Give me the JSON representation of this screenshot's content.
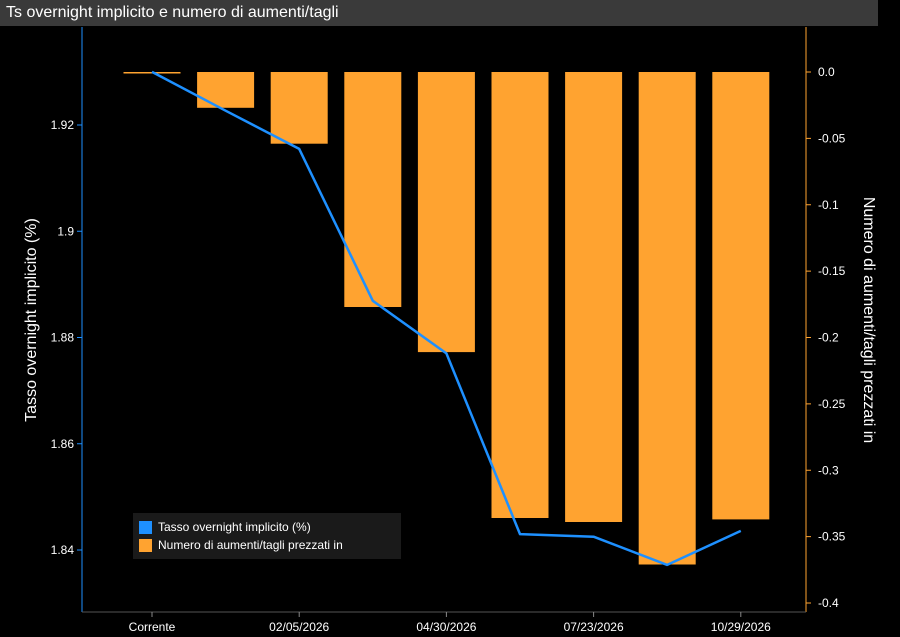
{
  "chart_data": {
    "type": "bar+line",
    "title": "Ts overnight implicito e numero di aumenti/tagli",
    "colors": {
      "background": "#000000",
      "title_bar": "#3a3a3a",
      "line": "#1e90ff",
      "bars": "#ffa330",
      "axis": "#1e90ff",
      "right_axis": "#ffa330",
      "text": "#ffffff"
    },
    "left_axis": {
      "label": "Tasso overnight implicito (%)",
      "ylim": [
        1.829,
        1.937
      ],
      "ticks": [
        1.84,
        1.86,
        1.88,
        1.9,
        1.92
      ],
      "tick_labels": [
        "1.84",
        "1.86",
        "1.88",
        "1.9",
        "1.92"
      ]
    },
    "right_axis": {
      "label": "Numero di aumenti/tagli prezzati in",
      "ylim": [
        -0.4,
        0.035
      ],
      "ticks": [
        0.0,
        -0.05,
        -0.1,
        -0.15,
        -0.2,
        -0.25,
        -0.3,
        -0.35,
        -0.4
      ],
      "tick_labels": [
        "0.0",
        "-0.05",
        "-0.1",
        "-0.15",
        "-0.2",
        "-0.25",
        "-0.3",
        "-0.35",
        "-0.4"
      ]
    },
    "x_tick_labels": [
      "Corrente",
      "02/05/2026",
      "04/30/2026",
      "07/23/2026",
      "10/29/2026"
    ],
    "x_tick_positions": [
      0,
      2,
      4,
      6,
      8
    ],
    "series": [
      {
        "name": "Tasso overnight implicito (%)",
        "type": "line",
        "axis": "left",
        "values": [
          1.93,
          1.9227,
          1.9155,
          1.8869,
          1.877,
          1.843,
          1.8425,
          1.8372,
          1.8436
        ]
      },
      {
        "name": "Numero di aumenti/tagli prezzati in",
        "type": "bar",
        "axis": "right",
        "values": [
          0.0,
          -0.027,
          -0.054,
          -0.177,
          -0.211,
          -0.336,
          -0.339,
          -0.371,
          -0.337
        ]
      }
    ],
    "legend": {
      "position": "bottom-left",
      "entries": [
        {
          "label": "Tasso overnight implicito (%)",
          "color": "#1e90ff"
        },
        {
          "label": "Numero di aumenti/tagli prezzati in",
          "color": "#ffa330"
        }
      ]
    }
  }
}
